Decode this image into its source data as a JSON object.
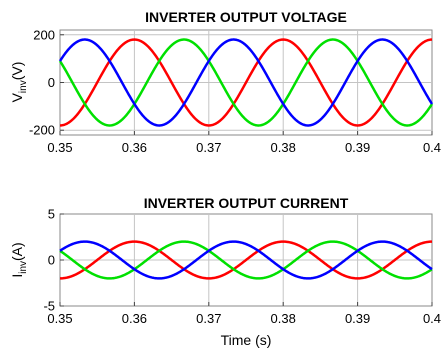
{
  "chart_data": [
    {
      "type": "line",
      "title": "INVERTER OUTPUT VOLTAGE",
      "ylabel_main": "V",
      "ylabel_sub": "inv",
      "ylabel_unit": "(V)",
      "xlim": [
        0.35,
        0.4
      ],
      "ylim": [
        -220,
        220
      ],
      "xticks": [
        0.35,
        0.36,
        0.37,
        0.38,
        0.39,
        0.4
      ],
      "xtick_labels": [
        "0.35",
        "0.36",
        "0.37",
        "0.38",
        "0.39",
        "0.4"
      ],
      "yticks": [
        -200,
        0,
        200
      ],
      "ytick_labels": [
        "-200",
        "0",
        "200"
      ],
      "grid": true,
      "series": [
        {
          "color": "#ff0000",
          "amplitude": 180,
          "frequency_hz": 50,
          "phase_deg": 90
        },
        {
          "color": "#00e000",
          "amplitude": 180,
          "frequency_hz": 50,
          "phase_deg": -30
        },
        {
          "color": "#0000ff",
          "amplitude": 180,
          "frequency_hz": 50,
          "phase_deg": 210
        }
      ]
    },
    {
      "type": "line",
      "title": "INVERTER OUTPUT CURRENT",
      "ylabel_main": "I",
      "ylabel_sub": "inv",
      "ylabel_unit": "(A)",
      "xlabel": "Time (s)",
      "xlim": [
        0.35,
        0.4
      ],
      "ylim": [
        -5,
        5
      ],
      "xticks": [
        0.35,
        0.36,
        0.37,
        0.38,
        0.39,
        0.4
      ],
      "xtick_labels": [
        "0.35",
        "0.36",
        "0.37",
        "0.38",
        "0.39",
        "0.4"
      ],
      "yticks": [
        -5,
        0,
        5
      ],
      "ytick_labels": [
        "-5",
        "0",
        "5"
      ],
      "grid": true,
      "series": [
        {
          "color": "#ff0000",
          "amplitude": 2,
          "frequency_hz": 50,
          "phase_deg": 90
        },
        {
          "color": "#00e000",
          "amplitude": 2,
          "frequency_hz": 50,
          "phase_deg": -30
        },
        {
          "color": "#0000ff",
          "amplitude": 2,
          "frequency_hz": 50,
          "phase_deg": 210
        }
      ]
    }
  ]
}
